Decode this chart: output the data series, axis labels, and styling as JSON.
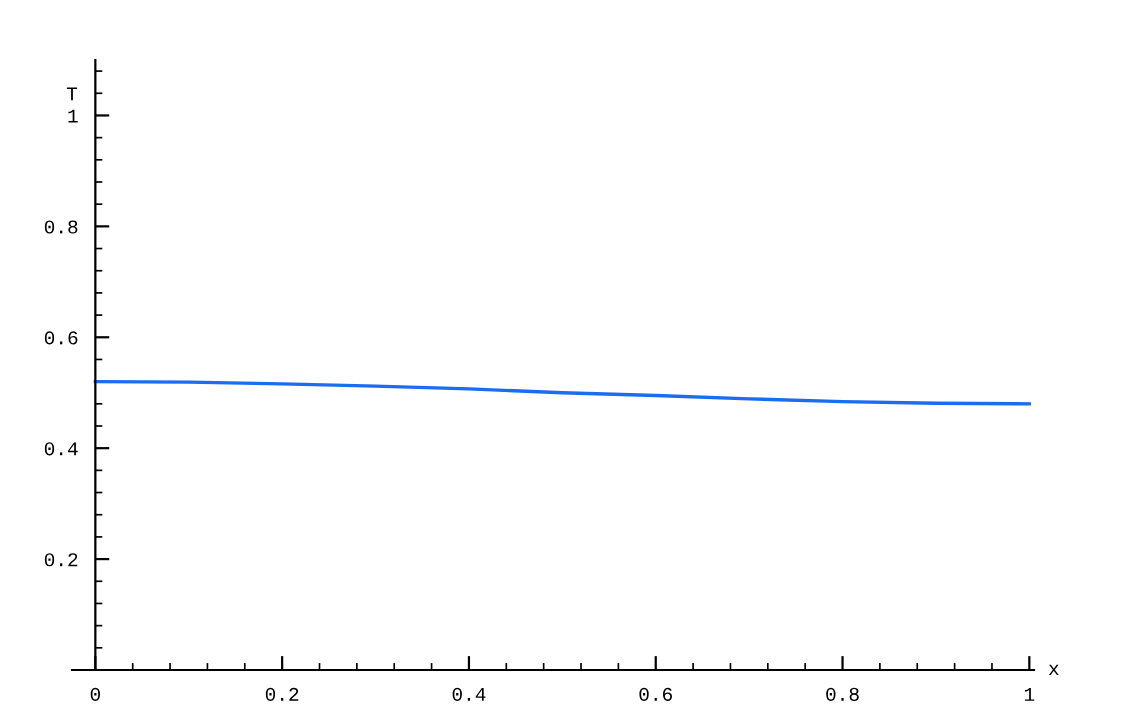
{
  "chart_data": {
    "type": "line",
    "xlabel": "x",
    "ylabel": "T",
    "x": [
      0,
      0.1,
      0.2,
      0.3,
      0.4,
      0.5,
      0.6,
      0.7,
      0.8,
      0.9,
      1
    ],
    "series": [
      {
        "color": "#1a6cf0",
        "values": [
          0.52,
          0.519,
          0.516,
          0.512,
          0.507,
          0.5,
          0.495,
          0.489,
          0.484,
          0.481,
          0.48
        ]
      }
    ],
    "xlim": [
      -0.025,
      1.005
    ],
    "ylim": [
      0,
      1.1
    ],
    "xticks": [
      0,
      0.2,
      0.4,
      0.6,
      0.8,
      1
    ],
    "yticks": [
      0.2,
      0.4,
      0.6,
      0.8,
      1
    ],
    "grid": false,
    "legend": false,
    "marker": "none",
    "line_style": "solid"
  }
}
